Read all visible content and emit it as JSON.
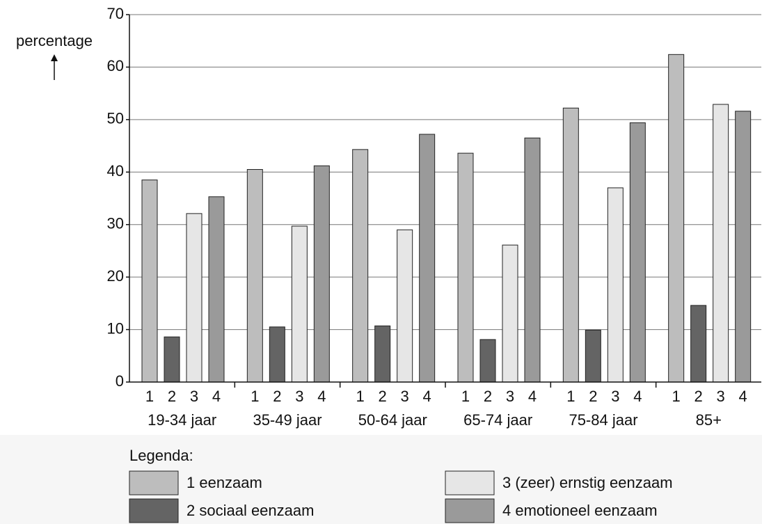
{
  "chart_data": {
    "type": "bar",
    "y_label": "percentage",
    "categories": [
      "19-34 jaar",
      "35-49 jaar",
      "50-64 jaar",
      "65-74 jaar",
      "75-84 jaar",
      "85+"
    ],
    "series_labels": [
      "1",
      "2",
      "3",
      "4"
    ],
    "legend_title": "Legenda:",
    "series": [
      {
        "name": "1 eenzaam",
        "color": "#bdbdbd",
        "values": [
          38.5,
          40.5,
          44.3,
          43.6,
          52.2,
          62.4
        ]
      },
      {
        "name": "2 sociaal eenzaam",
        "color": "#646464",
        "values": [
          8.6,
          10.5,
          10.7,
          8.1,
          9.9,
          14.6
        ]
      },
      {
        "name": "3 (zeer) ernstig eenzaam",
        "color": "#e6e6e6",
        "values": [
          32.1,
          29.7,
          29.0,
          26.1,
          37.0,
          52.9
        ]
      },
      {
        "name": "4 emotioneel eenzaam",
        "color": "#9a9a9a",
        "values": [
          35.3,
          41.2,
          47.2,
          46.5,
          49.4,
          51.6
        ]
      }
    ],
    "ylim": [
      0,
      70
    ],
    "yticks": [
      0,
      10,
      20,
      30,
      40,
      50,
      60,
      70
    ],
    "grid": true
  }
}
